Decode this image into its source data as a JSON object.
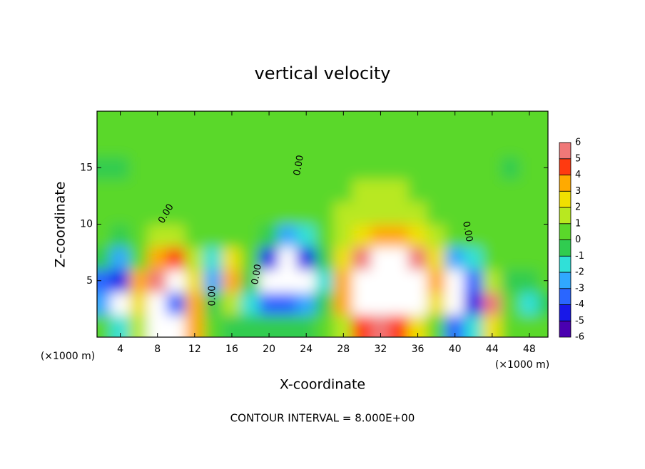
{
  "chart_data": {
    "type": "filled-contour",
    "title": "vertical velocity",
    "x_label": "X-coordinate",
    "y_label": "Z-coordinate",
    "x_unit": "(×1000 m)",
    "footer": "CONTOUR INTERVAL = 8.000E+00",
    "xlim": [
      1.5,
      50
    ],
    "ylim": [
      0,
      20
    ],
    "xticks": [
      4,
      8,
      12,
      16,
      20,
      24,
      28,
      32,
      36,
      40,
      44,
      48
    ],
    "yticks": [
      5,
      10,
      15
    ],
    "x": [
      2,
      4,
      6,
      8,
      10,
      12,
      14,
      16,
      18,
      20,
      22,
      24,
      26,
      28,
      30,
      32,
      34,
      36,
      38,
      40,
      42,
      44,
      46,
      48,
      50
    ],
    "y": [
      1,
      3,
      5,
      7,
      9,
      11,
      13,
      15,
      17,
      19
    ],
    "z": [
      [
        0,
        -2,
        1,
        7,
        -6.5,
        3,
        0,
        -1,
        -1,
        -1,
        -1,
        -1,
        0,
        1,
        4,
        5,
        4,
        2,
        0,
        -4,
        -2,
        2,
        0,
        0,
        0
      ],
      [
        -3,
        -6.5,
        2,
        7,
        -4,
        3,
        -1,
        1,
        -2,
        -4,
        -4,
        -3,
        -1,
        3,
        7,
        7,
        7,
        6.5,
        2,
        -6.5,
        -5,
        5,
        0,
        -2,
        -1
      ],
      [
        -4,
        -5,
        3,
        5,
        6.5,
        2,
        -3,
        3,
        -1,
        -6.5,
        -7,
        -6.5,
        -2,
        3,
        7,
        8,
        8,
        7,
        3,
        -7,
        -4,
        1,
        -1,
        -1,
        0
      ],
      [
        -1,
        -3,
        0.5,
        3,
        4,
        1,
        -2,
        2,
        0,
        -5,
        -6.5,
        -5,
        -1,
        2,
        5,
        7,
        7,
        6,
        2,
        -3,
        -2,
        0,
        0,
        0,
        0
      ],
      [
        0,
        -0.5,
        0,
        1,
        1,
        0.5,
        0,
        0,
        0,
        -1,
        -3,
        -2,
        0.5,
        1,
        2,
        3,
        3,
        2,
        1,
        0,
        0,
        0,
        0,
        0,
        0
      ],
      [
        0.3,
        0.3,
        0.5,
        0.5,
        0.5,
        0.5,
        0.3,
        0.3,
        0.3,
        0.3,
        0.5,
        0.5,
        0.5,
        1,
        1.5,
        1.5,
        1.5,
        1,
        0.5,
        0.5,
        0.3,
        0.3,
        0.3,
        0.3,
        0.3
      ],
      [
        0.3,
        0,
        0.3,
        0.5,
        0.5,
        0.3,
        0.3,
        0.3,
        0.3,
        0.3,
        0.3,
        0.5,
        0.5,
        0.5,
        1,
        1,
        1,
        0.5,
        0.5,
        0.3,
        0.3,
        0.3,
        0.3,
        0.3,
        0.3
      ],
      [
        -0.5,
        -0.3,
        0.3,
        0.3,
        0.3,
        0.3,
        0.3,
        0.3,
        0.3,
        0.3,
        0.3,
        0.3,
        0.3,
        0.5,
        0.5,
        0.5,
        0.5,
        0.5,
        0.3,
        0.3,
        0.3,
        0,
        -0.5,
        0.3,
        0.3
      ],
      [
        0.3,
        0.3,
        0.3,
        0.3,
        0.3,
        0.3,
        0.3,
        0.3,
        0.3,
        0.3,
        0.3,
        0.3,
        0.3,
        0.3,
        0.3,
        0.3,
        0.3,
        0.3,
        0.3,
        0.3,
        0.3,
        0.3,
        0.3,
        0.3,
        0.3
      ],
      [
        0.3,
        0.3,
        0.3,
        0.3,
        0.3,
        0.3,
        0.3,
        0.3,
        0.3,
        0.3,
        0.3,
        0.3,
        0.3,
        0.3,
        0.3,
        0.3,
        0.3,
        0.3,
        0.3,
        0.3,
        0.3,
        0.3,
        0.3,
        0.3,
        0.3
      ]
    ],
    "colorbar": {
      "levels": [
        -6,
        -5,
        -4,
        -3,
        -2,
        -1,
        0,
        1,
        2,
        3,
        4,
        5,
        6
      ],
      "colors": [
        "#4a00b0",
        "#1818e8",
        "#2a66ff",
        "#30a8ff",
        "#30e0d8",
        "#30cc50",
        "#5ad82a",
        "#b8e820",
        "#f0e000",
        "#ffaa00",
        "#ff3a10",
        "#f07878"
      ],
      "extreme_color": "#ffffff"
    },
    "contour_labels": [
      {
        "value": 0,
        "label": "0.00"
      },
      {
        "value": 0,
        "label": "0.00"
      },
      {
        "value": 0,
        "label": "0.00"
      },
      {
        "value": 0,
        "label": "0.00"
      },
      {
        "value": 0,
        "label": "0.00"
      }
    ]
  }
}
